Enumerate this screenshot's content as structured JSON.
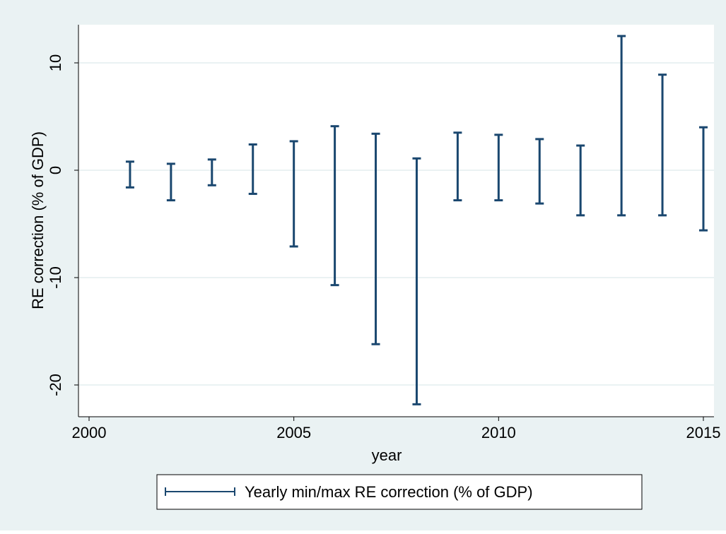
{
  "chart_data": {
    "type": "range_bar",
    "title": "",
    "xlabel": "year",
    "ylabel": "RE correction (% of GDP)",
    "xlim": [
      2000,
      2015
    ],
    "ylim": [
      -22,
      13
    ],
    "x_ticks": [
      2000,
      2005,
      2010,
      2015
    ],
    "y_ticks": [
      -20,
      -10,
      0,
      10
    ],
    "x_tick_labels": [
      "2000",
      "2005",
      "2010",
      "2015"
    ],
    "y_tick_labels": [
      "-20",
      "-10",
      "0",
      "10"
    ],
    "grid": "horizontal",
    "legend_position": "bottom",
    "series": [
      {
        "name": "Yearly min/max RE correction (% of GDP)",
        "color": "#1a476f",
        "points": [
          {
            "x": 2001,
            "min": -1.6,
            "max": 0.8
          },
          {
            "x": 2002,
            "min": -2.8,
            "max": 0.6
          },
          {
            "x": 2003,
            "min": -1.4,
            "max": 1.0
          },
          {
            "x": 2004,
            "min": -2.2,
            "max": 2.4
          },
          {
            "x": 2005,
            "min": -7.1,
            "max": 2.7
          },
          {
            "x": 2006,
            "min": -10.7,
            "max": 4.1
          },
          {
            "x": 2007,
            "min": -16.2,
            "max": 3.4
          },
          {
            "x": 2008,
            "min": -21.8,
            "max": 1.1
          },
          {
            "x": 2009,
            "min": -2.8,
            "max": 3.5
          },
          {
            "x": 2010,
            "min": -2.8,
            "max": 3.3
          },
          {
            "x": 2011,
            "min": -3.1,
            "max": 2.9
          },
          {
            "x": 2012,
            "min": -4.2,
            "max": 2.3
          },
          {
            "x": 2013,
            "min": -4.2,
            "max": 12.5
          },
          {
            "x": 2014,
            "min": -4.2,
            "max": 8.9
          },
          {
            "x": 2015,
            "min": -5.6,
            "max": 4.0
          }
        ]
      }
    ],
    "colors": {
      "outer_background": "#eaf2f3",
      "plot_background": "#ffffff",
      "grid": "#eaf2f3",
      "axis": "#000000"
    }
  }
}
